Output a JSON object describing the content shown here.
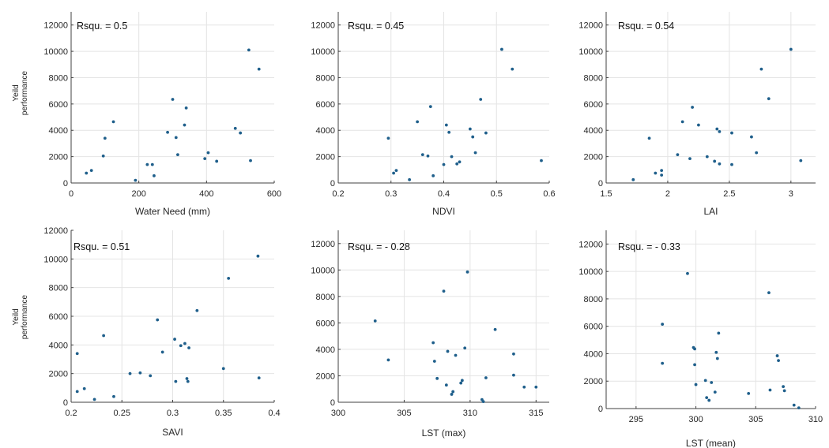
{
  "colors": {
    "marker": "#1f5f8b",
    "grid": "#e4e4e4",
    "axis": "#404040"
  },
  "chart_data": [
    {
      "type": "scatter",
      "title": "",
      "xlabel": "Water Need (mm)",
      "ylabel": "Yeild performance",
      "annotation": "Rsqu.  =  0.5",
      "xlim": [
        0,
        600
      ],
      "ylim": [
        0,
        13000
      ],
      "xticks": [
        0,
        200,
        400,
        600
      ],
      "yticks": [
        0,
        2000,
        4000,
        6000,
        8000,
        10000,
        12000
      ],
      "grid": true,
      "points": [
        [
          45,
          750
        ],
        [
          60,
          950
        ],
        [
          95,
          2050
        ],
        [
          100,
          3400
        ],
        [
          125,
          4650
        ],
        [
          190,
          200
        ],
        [
          225,
          1400
        ],
        [
          240,
          1400
        ],
        [
          245,
          550
        ],
        [
          285,
          3850
        ],
        [
          300,
          6350
        ],
        [
          310,
          3450
        ],
        [
          315,
          2150
        ],
        [
          335,
          4400
        ],
        [
          340,
          5700
        ],
        [
          395,
          1850
        ],
        [
          405,
          2300
        ],
        [
          430,
          1650
        ],
        [
          485,
          4150
        ],
        [
          500,
          3800
        ],
        [
          525,
          10100
        ],
        [
          530,
          1700
        ],
        [
          555,
          8650
        ]
      ]
    },
    {
      "type": "scatter",
      "title": "",
      "xlabel": "NDVI",
      "ylabel": "",
      "annotation": "Rsqu.  =  0.45",
      "xlim": [
        0.2,
        0.6
      ],
      "ylim": [
        0,
        13000
      ],
      "xticks": [
        0.2,
        0.3,
        0.4,
        0.5,
        0.6
      ],
      "yticks": [
        0,
        2000,
        4000,
        6000,
        8000,
        10000,
        12000
      ],
      "grid": true,
      "points": [
        [
          0.295,
          3400
        ],
        [
          0.305,
          750
        ],
        [
          0.31,
          950
        ],
        [
          0.335,
          250
        ],
        [
          0.35,
          4650
        ],
        [
          0.36,
          2150
        ],
        [
          0.37,
          2050
        ],
        [
          0.375,
          5800
        ],
        [
          0.38,
          550
        ],
        [
          0.4,
          1400
        ],
        [
          0.405,
          4400
        ],
        [
          0.41,
          3850
        ],
        [
          0.415,
          2000
        ],
        [
          0.425,
          1450
        ],
        [
          0.43,
          1600
        ],
        [
          0.45,
          4100
        ],
        [
          0.455,
          3500
        ],
        [
          0.46,
          2300
        ],
        [
          0.47,
          6350
        ],
        [
          0.48,
          3800
        ],
        [
          0.51,
          10150
        ],
        [
          0.53,
          8650
        ],
        [
          0.585,
          1700
        ]
      ]
    },
    {
      "type": "scatter",
      "title": "",
      "xlabel": "LAI",
      "ylabel": "",
      "annotation": "Rsqu.  =  0.54",
      "xlim": [
        1.5,
        3.2
      ],
      "ylim": [
        0,
        13000
      ],
      "xticks": [
        1.5,
        2,
        2.5,
        3
      ],
      "yticks": [
        0,
        2000,
        4000,
        6000,
        8000,
        10000,
        12000
      ],
      "grid": true,
      "points": [
        [
          1.72,
          250
        ],
        [
          1.85,
          3400
        ],
        [
          1.9,
          750
        ],
        [
          1.95,
          950
        ],
        [
          1.95,
          600
        ],
        [
          2.08,
          2150
        ],
        [
          2.12,
          4650
        ],
        [
          2.18,
          1850
        ],
        [
          2.2,
          5750
        ],
        [
          2.25,
          4400
        ],
        [
          2.32,
          2000
        ],
        [
          2.38,
          1650
        ],
        [
          2.4,
          4100
        ],
        [
          2.42,
          3900
        ],
        [
          2.42,
          1450
        ],
        [
          2.52,
          3800
        ],
        [
          2.52,
          1400
        ],
        [
          2.68,
          3500
        ],
        [
          2.72,
          2300
        ],
        [
          2.76,
          8650
        ],
        [
          2.82,
          6400
        ],
        [
          3.0,
          10150
        ],
        [
          3.08,
          1700
        ]
      ]
    },
    {
      "type": "scatter",
      "title": "",
      "xlabel": "SAVI",
      "ylabel": "Yeild performance",
      "annotation": "Rsqu.  =  0.51",
      "xlim": [
        0.2,
        0.4
      ],
      "ylim": [
        0,
        12000
      ],
      "xticks": [
        0.2,
        0.25,
        0.3,
        0.35,
        0.4
      ],
      "yticks": [
        0,
        2000,
        4000,
        6000,
        8000,
        10000,
        12000
      ],
      "grid": true,
      "points": [
        [
          0.206,
          3400
        ],
        [
          0.206,
          750
        ],
        [
          0.213,
          950
        ],
        [
          0.223,
          200
        ],
        [
          0.232,
          4650
        ],
        [
          0.242,
          400
        ],
        [
          0.258,
          2000
        ],
        [
          0.268,
          2050
        ],
        [
          0.278,
          1850
        ],
        [
          0.285,
          5750
        ],
        [
          0.29,
          3500
        ],
        [
          0.302,
          4400
        ],
        [
          0.303,
          1450
        ],
        [
          0.308,
          3950
        ],
        [
          0.312,
          4100
        ],
        [
          0.314,
          1650
        ],
        [
          0.315,
          1450
        ],
        [
          0.316,
          3800
        ],
        [
          0.324,
          6400
        ],
        [
          0.35,
          2350
        ],
        [
          0.355,
          8650
        ],
        [
          0.384,
          10200
        ],
        [
          0.385,
          1700
        ]
      ]
    },
    {
      "type": "scatter",
      "title": "",
      "xlabel": "LST (max)",
      "ylabel": "",
      "annotation": "Rsqu.  =  - 0.28",
      "xlim": [
        300,
        316
      ],
      "ylim": [
        0,
        13000
      ],
      "xticks": [
        300,
        305,
        310,
        315
      ],
      "yticks": [
        0,
        2000,
        4000,
        6000,
        8000,
        10000,
        12000
      ],
      "grid": true,
      "points": [
        [
          302.8,
          6150
        ],
        [
          303.8,
          3200
        ],
        [
          307.2,
          4500
        ],
        [
          307.3,
          3100
        ],
        [
          307.5,
          1800
        ],
        [
          308.0,
          8400
        ],
        [
          308.2,
          1300
        ],
        [
          308.3,
          3850
        ],
        [
          308.6,
          600
        ],
        [
          308.7,
          800
        ],
        [
          308.9,
          3550
        ],
        [
          309.3,
          1450
        ],
        [
          309.4,
          1650
        ],
        [
          309.6,
          4100
        ],
        [
          309.8,
          9850
        ],
        [
          310.9,
          200
        ],
        [
          311.0,
          50
        ],
        [
          311.2,
          1850
        ],
        [
          311.9,
          5500
        ],
        [
          313.3,
          3650
        ],
        [
          313.3,
          2050
        ],
        [
          314.1,
          1150
        ],
        [
          315.0,
          1150
        ]
      ]
    },
    {
      "type": "scatter",
      "title": "",
      "xlabel": "LST (mean)",
      "ylabel": "",
      "annotation": "Rsqu.  =  - 0.33",
      "xlim": [
        292.5,
        310
      ],
      "ylim": [
        0,
        13000
      ],
      "xticks": [
        295,
        300,
        305,
        310
      ],
      "yticks": [
        0,
        2000,
        4000,
        6000,
        8000,
        10000,
        12000
      ],
      "grid": true,
      "points": [
        [
          297.2,
          6150
        ],
        [
          297.2,
          3300
        ],
        [
          299.3,
          9850
        ],
        [
          299.8,
          4450
        ],
        [
          299.9,
          4350
        ],
        [
          299.9,
          3200
        ],
        [
          300.0,
          1750
        ],
        [
          300.8,
          2050
        ],
        [
          300.9,
          800
        ],
        [
          301.1,
          600
        ],
        [
          301.3,
          1900
        ],
        [
          301.6,
          1200
        ],
        [
          301.7,
          4100
        ],
        [
          301.8,
          3650
        ],
        [
          301.9,
          5500
        ],
        [
          304.4,
          1100
        ],
        [
          306.1,
          8450
        ],
        [
          306.2,
          1350
        ],
        [
          306.8,
          3850
        ],
        [
          306.9,
          3500
        ],
        [
          307.3,
          1600
        ],
        [
          307.4,
          1300
        ],
        [
          308.2,
          250
        ],
        [
          308.6,
          50
        ]
      ]
    }
  ]
}
